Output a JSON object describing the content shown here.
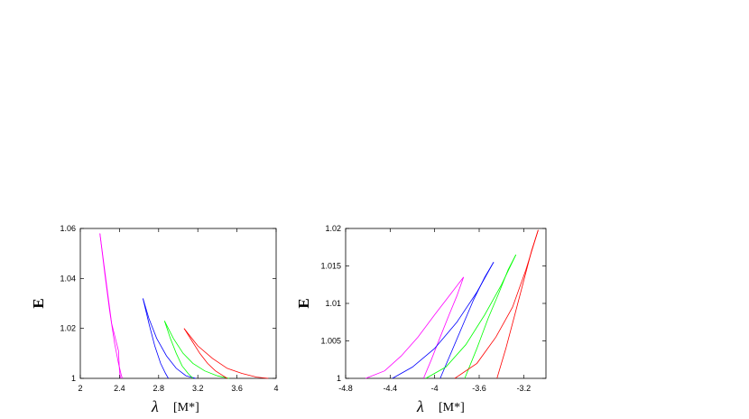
{
  "chart_data": [
    {
      "type": "line",
      "xlabel": "λ",
      "xunit": "[M*]",
      "ylabel": "E",
      "xlim": [
        2,
        4
      ],
      "ylim": [
        1,
        1.06
      ],
      "xticks": [
        "2",
        "2.4",
        "2.8",
        "3.2",
        "3.6",
        "4"
      ],
      "yticks": [
        "1",
        "1.02",
        "1.04",
        "1.06"
      ],
      "grid": false,
      "series": [
        {
          "color": "#ff00ff",
          "x": [
            2.2,
            2.26,
            2.32,
            2.39,
            2.4,
            2.41
          ],
          "y": [
            1.058,
            1.04,
            1.022,
            1.011,
            1.003,
            1.0
          ]
        },
        {
          "color": "#ff00ff",
          "x": [
            2.2,
            2.25,
            2.3,
            2.35,
            2.39,
            2.42,
            2.43
          ],
          "y": [
            1.058,
            1.042,
            1.027,
            1.014,
            1.006,
            1.001,
            1.0
          ]
        },
        {
          "color": "#0000ff",
          "x": [
            2.64,
            2.7,
            2.78,
            2.88,
            2.98,
            3.08,
            3.18
          ],
          "y": [
            1.032,
            1.024,
            1.016,
            1.009,
            1.004,
            1.001,
            1.0
          ]
        },
        {
          "color": "#0000ff",
          "x": [
            2.64,
            2.7,
            2.76,
            2.82,
            2.87,
            2.9
          ],
          "y": [
            1.032,
            1.022,
            1.013,
            1.006,
            1.002,
            1.0
          ]
        },
        {
          "color": "#00ff00",
          "x": [
            2.86,
            2.95,
            3.05,
            3.15,
            3.27,
            3.4,
            3.52
          ],
          "y": [
            1.023,
            1.016,
            1.01,
            1.006,
            1.003,
            1.001,
            1.0
          ]
        },
        {
          "color": "#00ff00",
          "x": [
            2.86,
            2.92,
            2.98,
            3.04,
            3.1,
            3.15
          ],
          "y": [
            1.023,
            1.016,
            1.01,
            1.005,
            1.002,
            1.0
          ]
        },
        {
          "color": "#ff0000",
          "x": [
            3.06,
            3.2,
            3.35,
            3.5,
            3.65,
            3.8,
            3.92
          ],
          "y": [
            1.02,
            1.013,
            1.008,
            1.004,
            1.002,
            1.0005,
            1.0
          ]
        },
        {
          "color": "#ff0000",
          "x": [
            3.06,
            3.14,
            3.22,
            3.3,
            3.38,
            3.46,
            3.5
          ],
          "y": [
            1.02,
            1.015,
            1.01,
            1.006,
            1.003,
            1.001,
            1.0
          ]
        }
      ]
    },
    {
      "type": "line",
      "xlabel": "λ",
      "xunit": "[M*]",
      "ylabel": "E",
      "xlim": [
        -4.8,
        -3.0
      ],
      "ylim": [
        1,
        1.02
      ],
      "xticks": [
        "-4.8",
        "-4.4",
        "-4",
        "-3.6",
        "-3.2"
      ],
      "xtick_values": [
        -4.8,
        -4.4,
        -4.0,
        -3.6,
        -3.2
      ],
      "yticks": [
        "1",
        "1.005",
        "1.01",
        "1.015",
        "1.02"
      ],
      "ytick_values": [
        1,
        1.005,
        1.01,
        1.015,
        1.02
      ],
      "grid": false,
      "series": [
        {
          "color": "#ff00ff",
          "x": [
            -4.62,
            -4.45,
            -4.3,
            -4.15,
            -4.0,
            -3.87,
            -3.74
          ],
          "y": [
            1.0,
            1.001,
            1.003,
            1.0055,
            1.0085,
            1.011,
            1.0135
          ]
        },
        {
          "color": "#ff00ff",
          "x": [
            -4.1,
            -4.03,
            -3.95,
            -3.87,
            -3.8,
            -3.74
          ],
          "y": [
            1.0,
            1.0025,
            1.0055,
            1.0085,
            1.011,
            1.0135
          ]
        },
        {
          "color": "#0000ff",
          "x": [
            -4.38,
            -4.2,
            -4.0,
            -3.8,
            -3.62,
            -3.47
          ],
          "y": [
            1.0,
            1.0015,
            1.004,
            1.0075,
            1.0115,
            1.0155
          ]
        },
        {
          "color": "#0000ff",
          "x": [
            -3.95,
            -3.85,
            -3.75,
            -3.65,
            -3.55,
            -3.47
          ],
          "y": [
            1.0,
            1.0035,
            1.007,
            1.0105,
            1.0135,
            1.0155
          ]
        },
        {
          "color": "#00ff00",
          "x": [
            -4.08,
            -3.9,
            -3.72,
            -3.55,
            -3.4,
            -3.27
          ],
          "y": [
            1.0,
            1.0015,
            1.0045,
            1.0085,
            1.0125,
            1.0165
          ]
        },
        {
          "color": "#00ff00",
          "x": [
            -3.73,
            -3.62,
            -3.52,
            -3.42,
            -3.34,
            -3.27
          ],
          "y": [
            1.0,
            1.004,
            1.008,
            1.0115,
            1.0145,
            1.0165
          ]
        },
        {
          "color": "#ff0000",
          "x": [
            -3.82,
            -3.62,
            -3.45,
            -3.3,
            -3.18,
            -3.07
          ],
          "y": [
            1.0,
            1.002,
            1.0055,
            1.0095,
            1.0145,
            1.0198
          ]
        },
        {
          "color": "#ff0000",
          "x": [
            -3.44,
            -3.36,
            -3.28,
            -3.2,
            -3.13,
            -3.07
          ],
          "y": [
            1.0,
            1.004,
            1.0085,
            1.013,
            1.017,
            1.0198
          ]
        }
      ]
    }
  ]
}
